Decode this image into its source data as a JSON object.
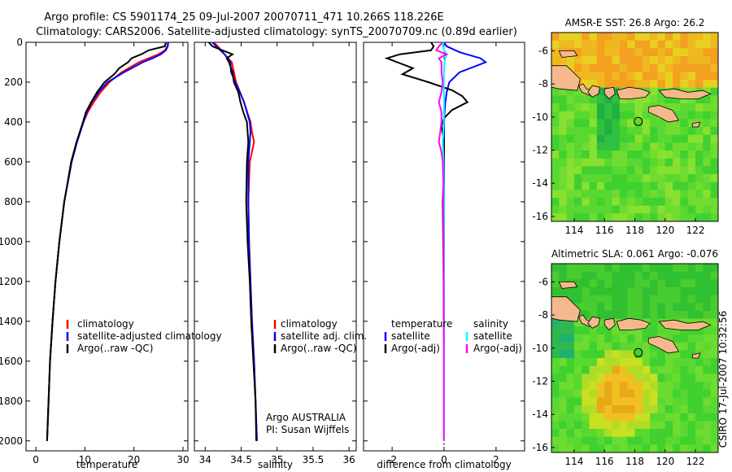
{
  "title_line1": "Argo profile: CS 5901174_25 09-Jul-2007 20070711_471 10.266S 118.226E",
  "title_line2": "Climatology: CARS2006. Satellite-adjusted climatology: synTS_20070709.nc (0.89d earlier)",
  "footer_text": "CSIRO 17-Jul-2007 10:32:56",
  "colors": {
    "climatology": "#ff0000",
    "satellite": "#0000ff",
    "argo": "#000000",
    "satellite_salinity_diff": "#00ffff",
    "argo_salinity_diff": "#ff00ff",
    "land": "#f4b88c"
  },
  "chart_data": [
    {
      "id": "temperature",
      "type": "line",
      "xlabel": "temperature",
      "ylabel": "",
      "xlim": [
        -2,
        31
      ],
      "ylim": [
        0,
        2050
      ],
      "xticks": [
        0,
        10,
        20,
        30
      ],
      "yticks": [
        0,
        200,
        400,
        600,
        800,
        1000,
        1200,
        1400,
        1600,
        1800,
        2000
      ],
      "legend": [
        "climatology",
        "satellite-adjusted climatology",
        "Argo(..raw -QC)"
      ],
      "series": [
        {
          "name": "climatology",
          "color": "#ff0000",
          "depth": [
            0,
            20,
            40,
            60,
            80,
            100,
            150,
            200,
            250,
            300,
            350,
            400,
            500,
            600,
            800,
            1000,
            1200,
            1400,
            1600,
            1800,
            2000
          ],
          "values": [
            26.9,
            26.8,
            26.3,
            25.0,
            23.0,
            21.0,
            17.5,
            15.0,
            13.2,
            11.8,
            10.6,
            9.7,
            8.4,
            7.3,
            5.8,
            4.8,
            4.0,
            3.4,
            2.9,
            2.6,
            2.3
          ]
        },
        {
          "name": "satellite-adjusted climatology",
          "color": "#0000ff",
          "depth": [
            0,
            20,
            40,
            60,
            80,
            100,
            150,
            200,
            250,
            300,
            350,
            400,
            500,
            600,
            800,
            1000,
            1200,
            1400,
            1600,
            1800,
            2000
          ],
          "values": [
            27.0,
            26.9,
            26.5,
            25.5,
            23.8,
            21.8,
            18.0,
            14.6,
            12.8,
            11.4,
            10.4,
            9.7,
            8.4,
            7.3,
            5.8,
            4.8,
            4.0,
            3.4,
            2.9,
            2.6,
            2.3
          ]
        },
        {
          "name": "Argo(..raw -QC)",
          "color": "#000000",
          "depth": [
            0,
            20,
            40,
            60,
            80,
            100,
            130,
            160,
            200,
            250,
            300,
            350,
            400,
            500,
            600,
            800,
            1000,
            1200,
            1400,
            1600,
            1800,
            2000
          ],
          "values": [
            26.5,
            26.3,
            23.0,
            21.5,
            19.5,
            18.8,
            17.0,
            16.0,
            14.0,
            12.5,
            11.3,
            10.2,
            9.6,
            8.3,
            7.2,
            5.8,
            4.8,
            4.0,
            3.4,
            2.9,
            2.6,
            2.3
          ]
        }
      ]
    },
    {
      "id": "salinity",
      "type": "line",
      "xlabel": "salinity",
      "ylabel": "",
      "xlim": [
        33.85,
        36.1
      ],
      "ylim": [
        0,
        2050
      ],
      "xticks": [
        34,
        34.5,
        35,
        35.5,
        36
      ],
      "legend": [
        "climatology",
        "satellite adj. clim.",
        "Argo(..raw -QC)"
      ],
      "annotations": [
        "Argo AUSTRALIA",
        "PI: Susan Wijffels"
      ],
      "series": [
        {
          "name": "climatology",
          "color": "#ff0000",
          "depth": [
            0,
            30,
            60,
            100,
            150,
            200,
            300,
            400,
            450,
            500,
            600,
            800,
            1000,
            1200,
            1400,
            1600,
            1800,
            2000
          ],
          "values": [
            34.12,
            34.2,
            34.27,
            34.37,
            34.4,
            34.43,
            34.54,
            34.63,
            34.65,
            34.68,
            34.62,
            34.6,
            34.61,
            34.63,
            34.65,
            34.68,
            34.7,
            34.72
          ]
        },
        {
          "name": "satellite adj. clim.",
          "color": "#0000ff",
          "depth": [
            0,
            30,
            60,
            100,
            150,
            200,
            300,
            400,
            450,
            500,
            600,
            800,
            1000,
            1200,
            1400,
            1600,
            1800,
            2000
          ],
          "values": [
            34.1,
            34.18,
            34.27,
            34.35,
            34.36,
            34.42,
            34.54,
            34.62,
            34.63,
            34.62,
            34.6,
            34.6,
            34.61,
            34.63,
            34.65,
            34.68,
            34.7,
            34.72
          ]
        },
        {
          "name": "Argo(..raw -QC)",
          "color": "#000000",
          "depth": [
            0,
            20,
            40,
            60,
            80,
            100,
            150,
            200,
            250,
            300,
            350,
            400,
            500,
            600,
            800,
            1000,
            1200,
            1400,
            1600,
            1800,
            2000
          ],
          "values": [
            34.05,
            34.1,
            34.24,
            34.38,
            34.3,
            34.33,
            34.38,
            34.4,
            34.46,
            34.49,
            34.53,
            34.58,
            34.6,
            34.58,
            34.57,
            34.59,
            34.62,
            34.64,
            34.67,
            34.7,
            34.71
          ]
        }
      ]
    },
    {
      "id": "difference",
      "type": "line",
      "xlabel": "difference from climatology",
      "ylabel": "",
      "xlim": [
        -3.1,
        3.1
      ],
      "ylim": [
        0,
        2050
      ],
      "xticks": [
        -2,
        0,
        2
      ],
      "legend": [
        "temperature",
        "satellite",
        "Argo(-adj)",
        "salinity",
        "satellite",
        "Argo(-adj)"
      ],
      "series": [
        {
          "name": "temperature satellite",
          "color": "#0000ff",
          "depth": [
            0,
            20,
            50,
            80,
            100,
            150,
            200,
            250,
            300,
            350,
            400,
            500,
            600,
            800,
            1000,
            1500,
            2000
          ],
          "values": [
            0.0,
            0.1,
            0.6,
            1.4,
            1.6,
            0.6,
            0.2,
            0.1,
            0.05,
            0.02,
            0.0,
            0.0,
            0.0,
            0.0,
            0.0,
            0.0,
            0.0
          ]
        },
        {
          "name": "temperature Argo(-adj)",
          "color": "#000000",
          "depth": [
            0,
            20,
            40,
            60,
            80,
            100,
            130,
            160,
            200,
            240,
            270,
            300,
            340,
            380,
            420,
            500,
            600,
            800,
            1000,
            1500,
            2000
          ],
          "values": [
            -0.5,
            -0.4,
            -0.5,
            -1.7,
            -2.2,
            -1.8,
            -1.2,
            -1.6,
            -0.6,
            0.3,
            0.7,
            0.9,
            0.3,
            0.0,
            -0.1,
            0.0,
            0.0,
            -0.05,
            -0.03,
            0.0,
            0.0
          ]
        },
        {
          "name": "salinity satellite",
          "color": "#00ffff",
          "depth": [
            0,
            20,
            40,
            60,
            80,
            100,
            150,
            200,
            300,
            400,
            500,
            600,
            800,
            1000,
            1500,
            2000
          ],
          "values": [
            -0.02,
            -0.05,
            0.0,
            0.1,
            0.05,
            0.02,
            0.0,
            -0.01,
            0.0,
            -0.01,
            -0.05,
            -0.02,
            0.0,
            0.0,
            0.0,
            0.0
          ]
        },
        {
          "name": "salinity Argo(-adj)",
          "color": "#ff00ff",
          "depth": [
            0,
            20,
            40,
            60,
            80,
            100,
            150,
            200,
            250,
            300,
            350,
            400,
            450,
            500,
            550,
            600,
            700,
            800,
            1000,
            1500,
            2000
          ],
          "values": [
            -0.05,
            -0.2,
            -0.3,
            0.1,
            -0.2,
            -0.1,
            -0.1,
            -0.05,
            -0.1,
            -0.2,
            -0.1,
            -0.1,
            -0.15,
            -0.2,
            -0.1,
            -0.05,
            -0.03,
            -0.03,
            -0.02,
            -0.01,
            -0.01
          ]
        }
      ]
    },
    {
      "id": "sst_map",
      "type": "heatmap",
      "title": "AMSR-E SST: 26.8 Argo: 26.2",
      "xlim": [
        112.5,
        123.5
      ],
      "ylim": [
        -16.3,
        -4.9
      ],
      "xticks": [
        114,
        116,
        118,
        120,
        122
      ],
      "yticks": [
        -6,
        -8,
        -10,
        -12,
        -14,
        -16
      ],
      "argo_position": {
        "lon": 118.226,
        "lat": -10.266
      }
    },
    {
      "id": "sla_map",
      "type": "heatmap",
      "title": "Altimetric SLA: 0.061 Argo: -0.076",
      "xlim": [
        112.5,
        123.5
      ],
      "ylim": [
        -16.3,
        -4.9
      ],
      "xticks": [
        114,
        116,
        118,
        120,
        122
      ],
      "yticks": [
        -6,
        -8,
        -10,
        -12,
        -14,
        -16
      ],
      "argo_position": {
        "lon": 118.226,
        "lat": -10.266
      }
    }
  ]
}
